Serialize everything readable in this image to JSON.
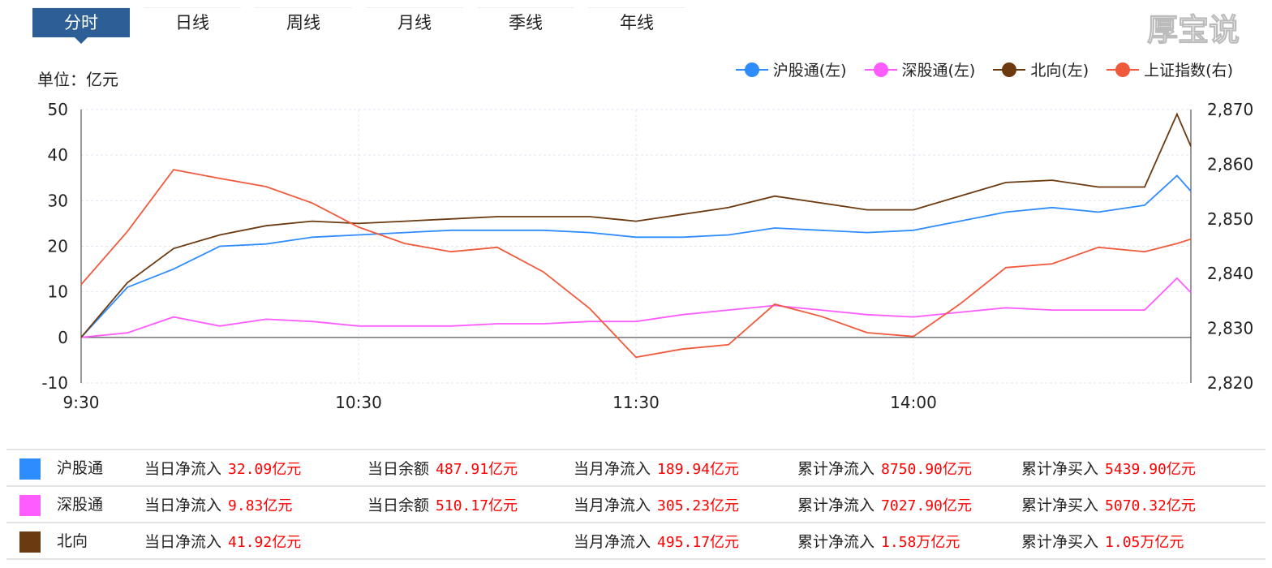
{
  "tabs": [
    "分时",
    "日线",
    "周线",
    "月线",
    "季线",
    "年线"
  ],
  "active_tab": 0,
  "unit_label": "单位：亿元",
  "legend": [
    {
      "label": "沪股通(左)",
      "color": "#2f8cff"
    },
    {
      "label": "深股通(左)",
      "color": "#ff5cff"
    },
    {
      "label": "北向(左)",
      "color": "#6b3a10"
    },
    {
      "label": "上证指数(右)",
      "color": "#f05a3c"
    }
  ],
  "chart_data": {
    "type": "line",
    "x": [
      "9:30",
      "9:40",
      "9:50",
      "10:00",
      "10:10",
      "10:20",
      "10:30",
      "10:40",
      "10:50",
      "11:00",
      "11:10",
      "11:20",
      "11:30",
      "13:10",
      "13:20",
      "13:30",
      "13:40",
      "13:50",
      "14:00",
      "14:10",
      "14:20",
      "14:30",
      "14:40",
      "14:50",
      "14:57",
      "15:00"
    ],
    "x_ticks": [
      "9:30",
      "10:30",
      "11:30",
      "14:00"
    ],
    "y_left": {
      "range": [
        -10,
        50
      ],
      "ticks": [
        "-10",
        "0",
        "10",
        "20",
        "30",
        "40",
        "50"
      ]
    },
    "y_right": {
      "range": [
        2820,
        2870
      ],
      "ticks": [
        "2,820",
        "2,830",
        "2,840",
        "2,850",
        "2,860",
        "2,870"
      ]
    },
    "grid": true,
    "legend_position": "top-right",
    "series": [
      {
        "name": "沪股通",
        "axis": "left",
        "color": "#2f8cff",
        "values": [
          0,
          11,
          15,
          20,
          20.5,
          22,
          22.5,
          23,
          23.5,
          23.5,
          23.5,
          23,
          22,
          22,
          22.5,
          24,
          23.5,
          23,
          23.5,
          25.5,
          27.5,
          28.5,
          27.5,
          29,
          35.5,
          32.09
        ]
      },
      {
        "name": "深股通",
        "axis": "left",
        "color": "#ff5cff",
        "values": [
          0,
          1,
          4.5,
          2.5,
          4,
          3.5,
          2.5,
          2.5,
          2.5,
          3,
          3,
          3.5,
          3.5,
          5,
          6,
          7,
          6,
          5,
          4.5,
          5.5,
          6.5,
          6,
          6,
          6,
          13,
          9.83
        ]
      },
      {
        "name": "北向",
        "axis": "left",
        "color": "#6b3a10",
        "values": [
          0,
          12,
          19.5,
          22.5,
          24.5,
          25.5,
          25,
          25.5,
          26,
          26.5,
          26.5,
          26.5,
          25.5,
          27,
          28.5,
          31,
          29.5,
          28,
          28,
          31,
          34,
          34.5,
          33,
          33,
          49,
          41.92
        ]
      },
      {
        "name": "上证指数",
        "axis": "right",
        "color": "#f05a3c",
        "values": [
          2838,
          2847.7,
          2859,
          2857.4,
          2855.9,
          2852.9,
          2848.5,
          2845.5,
          2844,
          2844.8,
          2840.3,
          2833.6,
          2824.7,
          2826.2,
          2827,
          2834.4,
          2832.2,
          2829.2,
          2828.5,
          2834.4,
          2841.1,
          2841.8,
          2844.8,
          2844,
          2845.5,
          2846.3
        ]
      }
    ]
  },
  "table": [
    {
      "name": "沪股通",
      "color": "#2f8cff",
      "c1": "当日净流入",
      "v1": "32.09亿元",
      "c2": "当日余额",
      "v2": "487.91亿元",
      "c3": "当月净流入",
      "v3": "189.94亿元",
      "c4": "累计净流入",
      "v4": "8750.90亿元",
      "c5": "累计净买入",
      "v5": "5439.90亿元"
    },
    {
      "name": "深股通",
      "color": "#ff5cff",
      "c1": "当日净流入",
      "v1": "9.83亿元",
      "c2": "当日余额",
      "v2": "510.17亿元",
      "c3": "当月净流入",
      "v3": "305.23亿元",
      "c4": "累计净流入",
      "v4": "7027.90亿元",
      "c5": "累计净买入",
      "v5": "5070.32亿元"
    },
    {
      "name": "北向",
      "color": "#6b3a10",
      "c1": "当日净流入",
      "v1": "41.92亿元",
      "c3": "当月净流入",
      "v3": "495.17亿元",
      "c4": "累计净流入",
      "v4": "1.58万亿元",
      "c5": "累计净买入",
      "v5": "1.05万亿元"
    }
  ],
  "watermark": "厚宝说"
}
